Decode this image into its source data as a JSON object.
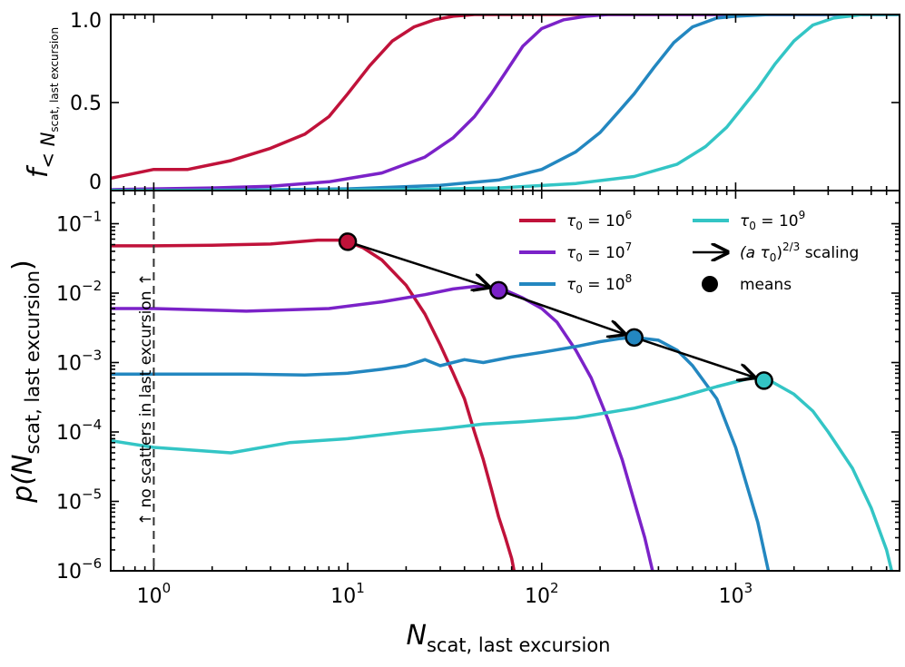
{
  "chart_data": [
    {
      "type": "line",
      "ylabel_main": "f",
      "ylabel_sub": "< N",
      "ylabel_sub2": "scat, last excursion",
      "xscale": "log",
      "xlim": [
        0.6,
        7000
      ],
      "ylim": [
        0,
        1
      ],
      "yticks": [
        {
          "value": 0,
          "label": "0"
        },
        {
          "value": 0.5,
          "label": "0.5"
        },
        {
          "value": 1,
          "label": "1.0"
        }
      ],
      "series": [
        {
          "name": "τ0 = 10^6",
          "color": "#c0123a",
          "x": [
            0.6,
            1,
            1.5,
            2.5,
            4,
            6,
            8,
            10,
            13,
            17,
            22,
            28,
            35,
            45,
            60,
            100,
            7000
          ],
          "y": [
            0.07,
            0.12,
            0.12,
            0.17,
            0.24,
            0.32,
            0.42,
            0.55,
            0.71,
            0.85,
            0.93,
            0.97,
            0.99,
            1.0,
            1.0,
            1.0,
            1.0
          ]
        },
        {
          "name": "τ0 = 10^7",
          "color": "#7b22c8",
          "x": [
            0.6,
            1,
            2,
            4,
            8,
            15,
            25,
            35,
            45,
            55,
            65,
            80,
            100,
            130,
            170,
            220,
            300,
            7000
          ],
          "y": [
            0.005,
            0.01,
            0.015,
            0.025,
            0.05,
            0.1,
            0.19,
            0.3,
            0.42,
            0.55,
            0.67,
            0.82,
            0.92,
            0.97,
            0.99,
            1.0,
            1.0,
            1.0
          ]
        },
        {
          "name": "τ0 = 10^8",
          "color": "#2387c0",
          "x": [
            0.6,
            1,
            3,
            10,
            30,
            60,
            100,
            150,
            200,
            250,
            300,
            380,
            480,
            600,
            800,
            1000,
            1500,
            7000
          ],
          "y": [
            0.0,
            0.001,
            0.003,
            0.01,
            0.03,
            0.06,
            0.12,
            0.22,
            0.33,
            0.45,
            0.55,
            0.7,
            0.84,
            0.93,
            0.98,
            0.99,
            1.0,
            1.0
          ]
        },
        {
          "name": "τ0 = 10^9",
          "color": "#33c5c5",
          "x": [
            0.6,
            1,
            5,
            20,
            60,
            150,
            300,
            500,
            700,
            900,
            1100,
            1300,
            1600,
            2000,
            2500,
            3200,
            4500,
            7000
          ],
          "y": [
            0.0,
            0.0,
            0.0,
            0.005,
            0.015,
            0.04,
            0.08,
            0.15,
            0.25,
            0.36,
            0.48,
            0.58,
            0.72,
            0.85,
            0.94,
            0.98,
            1.0,
            1.0
          ]
        }
      ]
    },
    {
      "type": "line",
      "ylabel_main": "p(N",
      "ylabel_sub": "scat, last excursion",
      "ylabel_end": ")",
      "xlabel_main": "N",
      "xlabel_sub": "scat, last excursion",
      "xscale": "log",
      "yscale": "log",
      "xlim": [
        0.6,
        7000
      ],
      "ylim": [
        1e-06,
        0.3
      ],
      "xticks": [
        {
          "value": 1,
          "base": "10",
          "exp": "0"
        },
        {
          "value": 10,
          "base": "10",
          "exp": "1"
        },
        {
          "value": 100,
          "base": "10",
          "exp": "2"
        },
        {
          "value": 1000,
          "base": "10",
          "exp": "3"
        }
      ],
      "yticks": [
        {
          "value": 0.1,
          "base": "10",
          "exp": "−1"
        },
        {
          "value": 0.01,
          "base": "10",
          "exp": "−2"
        },
        {
          "value": 0.001,
          "base": "10",
          "exp": "−3"
        },
        {
          "value": 0.0001,
          "base": "10",
          "exp": "−4"
        },
        {
          "value": 1e-05,
          "base": "10",
          "exp": "−5"
        },
        {
          "value": 1e-06,
          "base": "10",
          "exp": "−6"
        }
      ],
      "vline": {
        "x": 1,
        "label": "↑ no scatters in last excursion ↑"
      },
      "series": [
        {
          "name": "τ0 = 10^6",
          "color": "#c0123a",
          "x": [
            0.6,
            1,
            2,
            4,
            7,
            9,
            10,
            12,
            15,
            20,
            25,
            30,
            35,
            40,
            45,
            50,
            55,
            60,
            65,
            70,
            72,
            75
          ],
          "y": [
            0.048,
            0.048,
            0.049,
            0.051,
            0.058,
            0.058,
            0.055,
            0.045,
            0.03,
            0.013,
            0.005,
            0.0018,
            0.0007,
            0.0003,
            0.0001,
            4e-05,
            1.5e-05,
            6e-06,
            3e-06,
            1.5e-06,
            1e-06,
            7e-07
          ]
        },
        {
          "name": "τ0 = 10^7",
          "color": "#7b22c8",
          "x": [
            0.6,
            1,
            3,
            8,
            15,
            25,
            35,
            45,
            55,
            65,
            80,
            100,
            120,
            150,
            180,
            220,
            260,
            300,
            340,
            380
          ],
          "y": [
            0.006,
            0.006,
            0.0055,
            0.006,
            0.0075,
            0.0095,
            0.0115,
            0.0125,
            0.012,
            0.011,
            0.0085,
            0.006,
            0.0038,
            0.0015,
            0.0006,
            0.00015,
            4e-05,
            1e-05,
            3e-06,
            8e-07
          ]
        },
        {
          "name": "τ0 = 10^8",
          "color": "#2387c0",
          "x": [
            0.6,
            1,
            3,
            6,
            10,
            15,
            20,
            25,
            30,
            40,
            50,
            70,
            100,
            150,
            200,
            250,
            300,
            400,
            500,
            600,
            800,
            1000,
            1300,
            1500
          ],
          "y": [
            0.00068,
            0.00068,
            0.00068,
            0.00066,
            0.0007,
            0.0008,
            0.0009,
            0.0011,
            0.0009,
            0.0011,
            0.001,
            0.0012,
            0.0014,
            0.0017,
            0.002,
            0.0022,
            0.0023,
            0.0021,
            0.0015,
            0.0009,
            0.0003,
            6e-05,
            5e-06,
            8e-07
          ]
        },
        {
          "name": "τ0 = 10^9",
          "color": "#33c5c5",
          "x": [
            0.6,
            1,
            2.5,
            5,
            10,
            20,
            30,
            50,
            80,
            150,
            300,
            500,
            800,
            1200,
            1500,
            2000,
            2500,
            3000,
            4000,
            5000,
            6000,
            6500
          ],
          "y": [
            7.5e-05,
            6e-05,
            5e-05,
            7e-05,
            8e-05,
            0.0001,
            0.00011,
            0.00013,
            0.00014,
            0.00016,
            0.00022,
            0.00031,
            0.00045,
            0.0006,
            0.00055,
            0.00035,
            0.0002,
            0.0001,
            3e-05,
            8e-06,
            2e-06,
            8e-07
          ]
        }
      ],
      "means": {
        "x": [
          10,
          60,
          300,
          1400
        ],
        "y": [
          0.055,
          0.011,
          0.0023,
          0.00055
        ],
        "colors": [
          "#c0123a",
          "#7b22c8",
          "#2387c0",
          "#33c5c5"
        ]
      },
      "scaling_arrows": [
        {
          "from": [
            10,
            0.055
          ],
          "to": [
            60,
            0.011
          ]
        },
        {
          "from": [
            60,
            0.011
          ],
          "to": [
            300,
            0.0023
          ]
        },
        {
          "from": [
            300,
            0.0023
          ],
          "to": [
            1400,
            0.00055
          ]
        }
      ],
      "legend": {
        "placement": "upper-right",
        "entries": [
          {
            "kind": "line",
            "color": "#c0123a",
            "base": "τ",
            "sub": "0",
            "mid": " = 10",
            "sup": "6"
          },
          {
            "kind": "line",
            "color": "#7b22c8",
            "base": "τ",
            "sub": "0",
            "mid": " = 10",
            "sup": "7"
          },
          {
            "kind": "line",
            "color": "#2387c0",
            "base": "τ",
            "sub": "0",
            "mid": " = 10",
            "sup": "8"
          },
          {
            "kind": "line",
            "color": "#33c5c5",
            "base": "τ",
            "sub": "0",
            "mid": " = 10",
            "sup": "9"
          },
          {
            "kind": "arrow",
            "color": "#000000",
            "text_a": "(a τ",
            "text_sub": "0",
            "text_b": ")",
            "text_sup": "2/3",
            "text_c": " scaling"
          },
          {
            "kind": "marker",
            "color": "#000000",
            "text": "means"
          }
        ]
      }
    }
  ]
}
